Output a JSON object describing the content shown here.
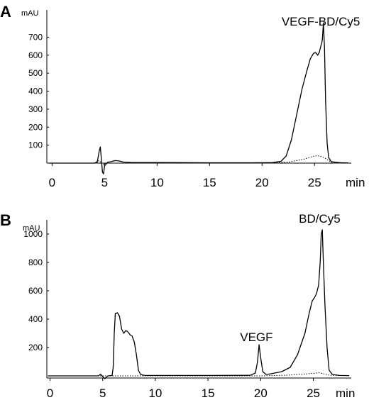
{
  "chart_data": [
    {
      "type": "line",
      "panel_label": "A",
      "ylabel": "mAU",
      "xlabel": "min",
      "x_ticks": [
        0,
        5,
        10,
        15,
        20,
        25
      ],
      "y_ticks": [
        100,
        200,
        300,
        400,
        500,
        600,
        700
      ],
      "xlim": [
        -0.5,
        28.5
      ],
      "ylim": [
        -60,
        820
      ],
      "annotations": [
        {
          "text": "VEGF-BD/Cy5",
          "x": 25.6,
          "y": 765
        }
      ],
      "series": [
        {
          "style": "solid",
          "points": [
            [
              -0.3,
              0
            ],
            [
              4.0,
              0
            ],
            [
              4.3,
              5
            ],
            [
              4.5,
              70
            ],
            [
              4.6,
              90
            ],
            [
              4.7,
              20
            ],
            [
              4.8,
              -50
            ],
            [
              4.9,
              -60
            ],
            [
              5.0,
              -15
            ],
            [
              5.3,
              5
            ],
            [
              5.6,
              8
            ],
            [
              6.0,
              14
            ],
            [
              6.4,
              12
            ],
            [
              6.8,
              6
            ],
            [
              7.5,
              4
            ],
            [
              10,
              3
            ],
            [
              15,
              2
            ],
            [
              19,
              2
            ],
            [
              21,
              3
            ],
            [
              21.8,
              10
            ],
            [
              22.3,
              40
            ],
            [
              22.8,
              130
            ],
            [
              23.3,
              270
            ],
            [
              23.8,
              410
            ],
            [
              24.3,
              520
            ],
            [
              24.6,
              580
            ],
            [
              24.9,
              610
            ],
            [
              25.1,
              615
            ],
            [
              25.3,
              600
            ],
            [
              25.45,
              615
            ],
            [
              25.6,
              650
            ],
            [
              25.7,
              670
            ],
            [
              25.75,
              690
            ],
            [
              25.85,
              780
            ],
            [
              25.95,
              640
            ],
            [
              26.05,
              350
            ],
            [
              26.2,
              110
            ],
            [
              26.35,
              30
            ],
            [
              26.6,
              8
            ],
            [
              27.5,
              2
            ],
            [
              28.2,
              1
            ]
          ]
        },
        {
          "style": "dotted",
          "points": [
            [
              -0.3,
              0
            ],
            [
              4,
              0
            ],
            [
              4.5,
              15
            ],
            [
              4.8,
              -10
            ],
            [
              5.2,
              0
            ],
            [
              20,
              0
            ],
            [
              22.5,
              5
            ],
            [
              24,
              22
            ],
            [
              25,
              40
            ],
            [
              25.5,
              40
            ],
            [
              26,
              28
            ],
            [
              26.6,
              5
            ],
            [
              28.2,
              2
            ]
          ]
        }
      ]
    },
    {
      "type": "line",
      "panel_label": "B",
      "ylabel": "mAU",
      "xlabel": "min",
      "x_ticks": [
        0,
        5,
        10,
        15,
        20,
        25
      ],
      "y_ticks": [
        200,
        400,
        600,
        800,
        1000
      ],
      "xlim": [
        -0.3,
        28.6
      ],
      "ylim": [
        -60,
        1060
      ],
      "annotations": [
        {
          "text": "VEGF",
          "x": 19.6,
          "y": 245
        },
        {
          "text": "BD/Cy5",
          "x": 25.6,
          "y": 1080
        }
      ],
      "series": [
        {
          "style": "solid",
          "points": [
            [
              -0.2,
              0
            ],
            [
              4.6,
              0
            ],
            [
              4.8,
              12
            ],
            [
              5.0,
              -5
            ],
            [
              5.2,
              -20
            ],
            [
              5.5,
              0
            ],
            [
              5.9,
              3
            ],
            [
              6.0,
              60
            ],
            [
              6.1,
              300
            ],
            [
              6.2,
              440
            ],
            [
              6.4,
              445
            ],
            [
              6.6,
              420
            ],
            [
              6.8,
              330
            ],
            [
              7.0,
              300
            ],
            [
              7.2,
              320
            ],
            [
              7.4,
              310
            ],
            [
              7.6,
              290
            ],
            [
              7.8,
              280
            ],
            [
              8.0,
              240
            ],
            [
              8.2,
              150
            ],
            [
              8.4,
              40
            ],
            [
              8.6,
              10
            ],
            [
              9,
              3
            ],
            [
              15,
              3
            ],
            [
              19,
              4
            ],
            [
              19.5,
              20
            ],
            [
              19.7,
              100
            ],
            [
              19.85,
              220
            ],
            [
              20.0,
              130
            ],
            [
              20.2,
              30
            ],
            [
              20.5,
              10
            ],
            [
              21,
              15
            ],
            [
              22,
              30
            ],
            [
              22.8,
              60
            ],
            [
              23.5,
              150
            ],
            [
              24.2,
              300
            ],
            [
              24.6,
              440
            ],
            [
              24.9,
              530
            ],
            [
              25.1,
              550
            ],
            [
              25.3,
              580
            ],
            [
              25.5,
              640
            ],
            [
              25.65,
              800
            ],
            [
              25.75,
              1000
            ],
            [
              25.85,
              1030
            ],
            [
              25.95,
              800
            ],
            [
              26.1,
              500
            ],
            [
              26.3,
              200
            ],
            [
              26.5,
              40
            ],
            [
              26.8,
              10
            ],
            [
              27.5,
              3
            ],
            [
              28.4,
              2
            ]
          ]
        },
        {
          "style": "dotted",
          "points": [
            [
              -0.2,
              0
            ],
            [
              20,
              0
            ],
            [
              22.5,
              5
            ],
            [
              24,
              12
            ],
            [
              25,
              18
            ],
            [
              25.6,
              22
            ],
            [
              26,
              14
            ],
            [
              26.6,
              4
            ],
            [
              28.4,
              2
            ]
          ]
        }
      ]
    }
  ]
}
